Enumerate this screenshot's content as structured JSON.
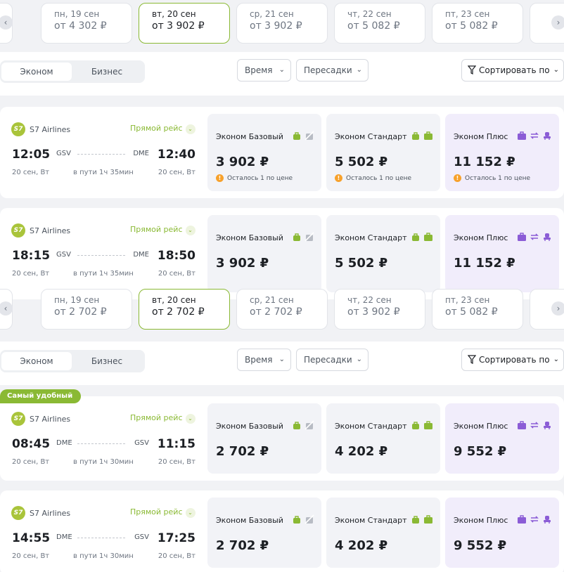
{
  "date_strip_1": {
    "dates": [
      {
        "day": "пн, 19 сен",
        "price": "от 4 302 ₽"
      },
      {
        "day": "вт, 20 сен",
        "price": "от 3 902 ₽"
      },
      {
        "day": "ср, 21 сен",
        "price": "от 3 902 ₽"
      },
      {
        "day": "чт, 22 сен",
        "price": "от 5 082 ₽"
      },
      {
        "day": "пт, 23 сен",
        "price": "от 5 082 ₽"
      }
    ],
    "active_index": 1
  },
  "date_strip_2": {
    "dates": [
      {
        "day": "пн, 19 сен",
        "price": "от 2 702 ₽"
      },
      {
        "day": "вт, 20 сен",
        "price": "от 2 702 ₽"
      },
      {
        "day": "ср, 21 сен",
        "price": "от 2 702 ₽"
      },
      {
        "day": "чт, 22 сен",
        "price": "от 3 902 ₽"
      },
      {
        "day": "пт, 23 сен",
        "price": "от 5 082 ₽"
      }
    ],
    "active_index": 1
  },
  "filters": {
    "economy": "Эконом",
    "business": "Бизнес",
    "time": "Время",
    "transfers": "Пересадки",
    "sort": "Сортировать по"
  },
  "badge": "Самый удобный",
  "flights": [
    {
      "airline": "S7 Airlines",
      "direct": "Прямой рейс",
      "dep_time": "12:05",
      "from": "GSV",
      "to": "DME",
      "arr_time": "12:40",
      "dep_date": "20 сен, Вт",
      "duration": "в пути 1ч 35мин",
      "arr_date": "20 сен, Вт",
      "tariffs": [
        {
          "name": "Эконом Базовый",
          "price": "3 902 ₽",
          "note": "Осталось 1 по цене"
        },
        {
          "name": "Эконом Стандарт",
          "price": "5 502 ₽",
          "note": "Осталось 1 по цене"
        },
        {
          "name": "Эконом Плюс",
          "price": "11 152 ₽",
          "note": "Осталось 1 по цене"
        }
      ]
    },
    {
      "airline": "S7 Airlines",
      "direct": "Прямой рейс",
      "dep_time": "18:15",
      "from": "GSV",
      "to": "DME",
      "arr_time": "18:50",
      "dep_date": "20 сен, Вт",
      "duration": "в пути 1ч 35мин",
      "arr_date": "20 сен, Вт",
      "tariffs": [
        {
          "name": "Эконом Базовый",
          "price": "3 902 ₽"
        },
        {
          "name": "Эконом Стандарт",
          "price": "5 502 ₽"
        },
        {
          "name": "Эконом Плюс",
          "price": "11 152 ₽"
        }
      ]
    },
    {
      "airline": "S7 Airlines",
      "direct": "Прямой рейс",
      "dep_time": "08:45",
      "from": "DME",
      "to": "GSV",
      "arr_time": "11:15",
      "dep_date": "20 сен, Вт",
      "duration": "в пути 1ч 30мин",
      "arr_date": "20 сен, Вт",
      "tariffs": [
        {
          "name": "Эконом Базовый",
          "price": "2 702 ₽"
        },
        {
          "name": "Эконом Стандарт",
          "price": "4 202 ₽"
        },
        {
          "name": "Эконом Плюс",
          "price": "9 552 ₽"
        }
      ]
    },
    {
      "airline": "S7 Airlines",
      "direct": "Прямой рейс",
      "dep_time": "14:55",
      "from": "DME",
      "to": "GSV",
      "arr_time": "17:25",
      "dep_date": "20 сен, Вт",
      "duration": "в пути 1ч 30мин",
      "arr_date": "20 сен, Вт",
      "tariffs": [
        {
          "name": "Эконом Базовый",
          "price": "2 702 ₽"
        },
        {
          "name": "Эконом Стандарт",
          "price": "4 202 ₽"
        },
        {
          "name": "Эконом Плюс",
          "price": "9 552 ₽"
        }
      ]
    }
  ],
  "colors": {
    "accent": "#8ab934",
    "plus_bg": "#f1edfb",
    "warning": "#f7a12b",
    "plus_icon": "#8b5cd6"
  }
}
